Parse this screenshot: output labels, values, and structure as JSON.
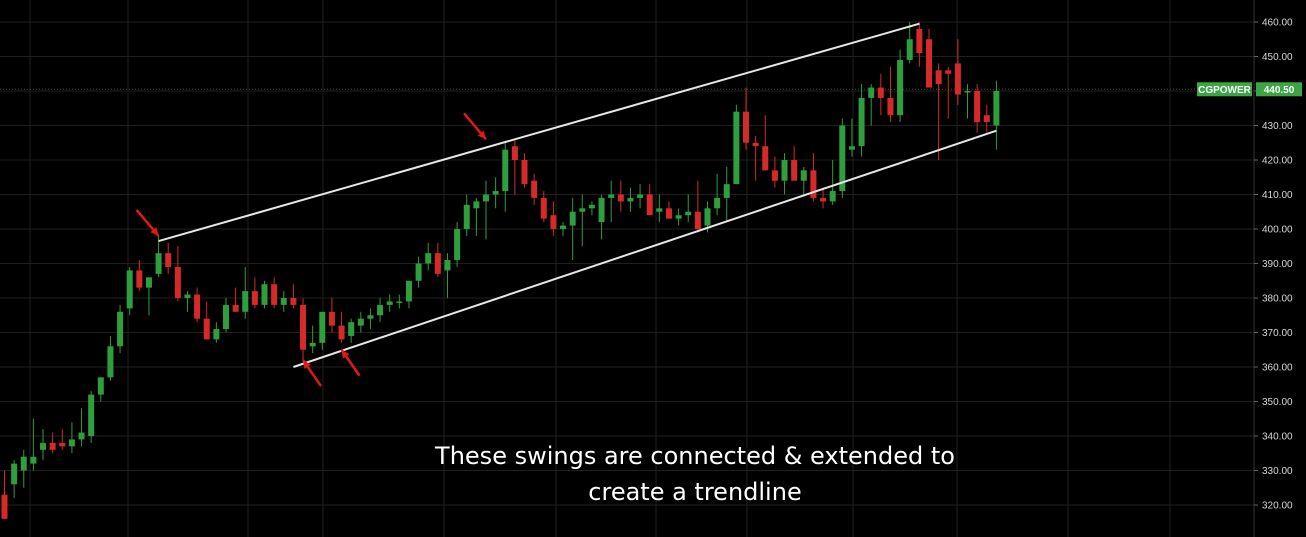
{
  "colors": {
    "background": "#000000",
    "grid": "#1f1f1f",
    "up": "#2e9e3f",
    "down": "#d42a2a",
    "trendline": "#e6e6e6",
    "arrow": "#e01818",
    "price_badge": "#3ca544",
    "axis_text": "#d8d8d8"
  },
  "chart_data": {
    "type": "candlestick",
    "ylim": [
      316,
      462
    ],
    "y_ticks": [
      "320.00",
      "330.00",
      "340.00",
      "350.00",
      "360.00",
      "370.00",
      "380.00",
      "390.00",
      "400.00",
      "410.00",
      "420.00",
      "430.00",
      "440.00",
      "450.00",
      "460.00"
    ],
    "y_tick_values": [
      320,
      330,
      340,
      350,
      360,
      370,
      380,
      390,
      400,
      410,
      420,
      430,
      440,
      450,
      460
    ],
    "last_price": {
      "symbol": "CGPOWER",
      "value": "440.50",
      "numeric": 440.5
    },
    "candles": [
      [
        323,
        330,
        316,
        316
      ],
      [
        326,
        333,
        322,
        332
      ],
      [
        330,
        336,
        325,
        334
      ],
      [
        332,
        345,
        330,
        334
      ],
      [
        336,
        342,
        333,
        338
      ],
      [
        338,
        341,
        335,
        336
      ],
      [
        338,
        342,
        336,
        337
      ],
      [
        337,
        344,
        335,
        339
      ],
      [
        339,
        348,
        337,
        341
      ],
      [
        340,
        353,
        338,
        352
      ],
      [
        352,
        357,
        350,
        357
      ],
      [
        357,
        369,
        356,
        366
      ],
      [
        366,
        378,
        364,
        376
      ],
      [
        377,
        389,
        375,
        388
      ],
      [
        388,
        391,
        382,
        383
      ],
      [
        383,
        385,
        375,
        386
      ],
      [
        387,
        398,
        386,
        393
      ],
      [
        393,
        396,
        387,
        389
      ],
      [
        389,
        395,
        379,
        380
      ],
      [
        380,
        382,
        376,
        381
      ],
      [
        381,
        383,
        373,
        374
      ],
      [
        374,
        379,
        368,
        368
      ],
      [
        368,
        373,
        367,
        371
      ],
      [
        371,
        380,
        370,
        378
      ],
      [
        378,
        383,
        376,
        376
      ],
      [
        376,
        389,
        374,
        382
      ],
      [
        382,
        386,
        377,
        378
      ],
      [
        378,
        385,
        377,
        384
      ],
      [
        384,
        386,
        377,
        378
      ],
      [
        378,
        382,
        376,
        380
      ],
      [
        380,
        384,
        377,
        378
      ],
      [
        378,
        380,
        362,
        365
      ],
      [
        366,
        372,
        364,
        367
      ],
      [
        367,
        375,
        365,
        376
      ],
      [
        376,
        380,
        370,
        372
      ],
      [
        372,
        376,
        367,
        368
      ],
      [
        369,
        374,
        367,
        373
      ],
      [
        372,
        376,
        370,
        374
      ],
      [
        374,
        377,
        371,
        375
      ],
      [
        375,
        380,
        373,
        378
      ],
      [
        378,
        381,
        376,
        379
      ],
      [
        379,
        381,
        377,
        379
      ],
      [
        379,
        385,
        377,
        385
      ],
      [
        385,
        392,
        383,
        390
      ],
      [
        390,
        396,
        388,
        393
      ],
      [
        393,
        396,
        386,
        387
      ],
      [
        388,
        393,
        380,
        391
      ],
      [
        391,
        402,
        389,
        400
      ],
      [
        400,
        410,
        398,
        407
      ],
      [
        406,
        409,
        398,
        408
      ],
      [
        408,
        414,
        397,
        410
      ],
      [
        410,
        415,
        406,
        411
      ],
      [
        411,
        425,
        405,
        423
      ],
      [
        424,
        426,
        410,
        420
      ],
      [
        420,
        422,
        412,
        413
      ],
      [
        414,
        416,
        407,
        409
      ],
      [
        409,
        411,
        402,
        403
      ],
      [
        404,
        408,
        398,
        400
      ],
      [
        400,
        402,
        398,
        401
      ],
      [
        401,
        409,
        391,
        405
      ],
      [
        405,
        410,
        395,
        406
      ],
      [
        406,
        408,
        404,
        407
      ],
      [
        402,
        410,
        397,
        409
      ],
      [
        409,
        414,
        402,
        410
      ],
      [
        410,
        414,
        405,
        408
      ],
      [
        408,
        412,
        405,
        409
      ],
      [
        409,
        413,
        406,
        410
      ],
      [
        410,
        413,
        404,
        404
      ],
      [
        405,
        410,
        402,
        406
      ],
      [
        406,
        408,
        403,
        403
      ],
      [
        403,
        406,
        401,
        404
      ],
      [
        404,
        410,
        402,
        405
      ],
      [
        405,
        414,
        399,
        400
      ],
      [
        401,
        408,
        399,
        406
      ],
      [
        406,
        416,
        404,
        409
      ],
      [
        409,
        418,
        402,
        413
      ],
      [
        413,
        436,
        413,
        434
      ],
      [
        434,
        441,
        423,
        425
      ],
      [
        425,
        427,
        414,
        424
      ],
      [
        424,
        433,
        417,
        417
      ],
      [
        417,
        421,
        412,
        414
      ],
      [
        414,
        422,
        410,
        420
      ],
      [
        420,
        424,
        415,
        414
      ],
      [
        414,
        418,
        410,
        417
      ],
      [
        417,
        422,
        408,
        409
      ],
      [
        409,
        412,
        406,
        408
      ],
      [
        408,
        420,
        407,
        411
      ],
      [
        411,
        432,
        409,
        430
      ],
      [
        423,
        432,
        421,
        424
      ],
      [
        424,
        442,
        421,
        438
      ],
      [
        438,
        442,
        430,
        441
      ],
      [
        441,
        445,
        433,
        438
      ],
      [
        438,
        447,
        431,
        433
      ],
      [
        433,
        452,
        431,
        449
      ],
      [
        449,
        460,
        448,
        455
      ],
      [
        458,
        460,
        447,
        451
      ],
      [
        455,
        458,
        442,
        441
      ],
      [
        446,
        448,
        420,
        442
      ],
      [
        446,
        447,
        432,
        445
      ],
      [
        448,
        455,
        436,
        439
      ],
      [
        440,
        442,
        432,
        440
      ],
      [
        440,
        442,
        428,
        431
      ],
      [
        433,
        436,
        428,
        431
      ],
      [
        430,
        443,
        423,
        440
      ]
    ],
    "trendlines": [
      {
        "from": [
          16,
          396.5
        ],
        "to": [
          95,
          459.5
        ]
      },
      {
        "from": [
          30,
          360.0
        ],
        "to": [
          103,
          428.5
        ]
      }
    ],
    "arrows": [
      {
        "index": 16,
        "price": 398,
        "pointing": "down-right"
      },
      {
        "index": 31,
        "price": 362,
        "pointing": "up-left"
      },
      {
        "index": 35,
        "price": 365,
        "pointing": "up-left"
      },
      {
        "index": 50,
        "price": 426,
        "pointing": "down-right"
      }
    ],
    "annotation": [
      "These swings are connected & extended to",
      "create a trendline"
    ]
  }
}
